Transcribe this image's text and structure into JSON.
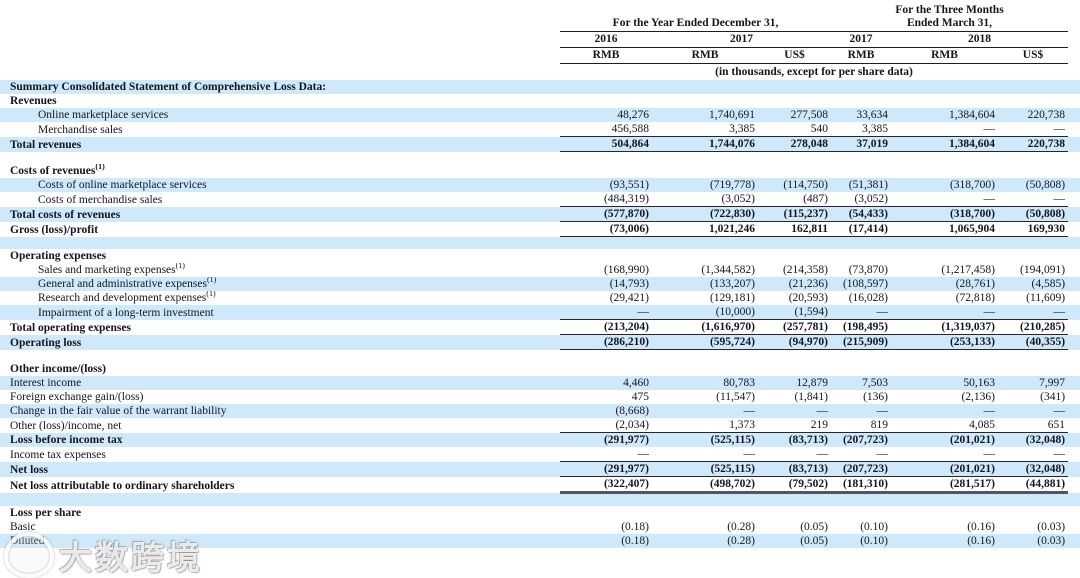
{
  "header": {
    "group1": "For the Year Ended December 31,",
    "group2_line1": "For the Three Months",
    "group2_line2": "Ended March 31,",
    "years": [
      "2016",
      "2017",
      "2017",
      "2018"
    ],
    "currencies": [
      "RMB",
      "RMB",
      "US$",
      "RMB",
      "RMB",
      "US$"
    ],
    "note": "(in thousands, except for per share data)"
  },
  "table": {
    "rows": [
      {
        "label": "Summary Consolidated Statement of Comprehensive Loss Data:",
        "bold": true,
        "stripe": true,
        "values": []
      },
      {
        "label": "Revenues",
        "bold": true,
        "stripe": false,
        "values": []
      },
      {
        "label": "Online marketplace services",
        "indent": true,
        "stripe": true,
        "values": [
          "48,276",
          "1,740,691",
          "277,508",
          "33,634",
          "1,384,604",
          "220,738"
        ]
      },
      {
        "label": "Merchandise sales",
        "indent": true,
        "stripe": false,
        "rule": "line",
        "values": [
          "456,588",
          "3,385",
          "540",
          "3,385",
          "—",
          "—"
        ]
      },
      {
        "label": "Total revenues",
        "bold": true,
        "stripe": true,
        "rule": "line",
        "values": [
          "504,864",
          "1,744,076",
          "278,048",
          "37,019",
          "1,384,604",
          "220,738"
        ]
      },
      {
        "label": "",
        "blank": true,
        "stripe": false,
        "values": []
      },
      {
        "label": "Costs of revenues",
        "sup": "(1)",
        "bold": true,
        "stripe": false,
        "values": []
      },
      {
        "label": "Costs of online marketplace services",
        "indent": true,
        "stripe": true,
        "values": [
          "(93,551)",
          "(719,778)",
          "(114,750)",
          "(51,381)",
          "(318,700)",
          "(50,808)"
        ]
      },
      {
        "label": "Costs of merchandise sales",
        "indent": true,
        "stripe": false,
        "rule": "line",
        "values": [
          "(484,319)",
          "(3,052)",
          "(487)",
          "(3,052)",
          "—",
          "—"
        ]
      },
      {
        "label": "Total costs of revenues",
        "bold": true,
        "stripe": true,
        "rule": "line",
        "values": [
          "(577,870)",
          "(722,830)",
          "(115,237)",
          "(54,433)",
          "(318,700)",
          "(50,808)"
        ]
      },
      {
        "label": "Gross (loss)/profit",
        "bold": true,
        "stripe": false,
        "rule": "line",
        "values": [
          "(73,006)",
          "1,021,246",
          "162,811",
          "(17,414)",
          "1,065,904",
          "169,930"
        ]
      },
      {
        "label": "",
        "blank": true,
        "stripe": true,
        "values": []
      },
      {
        "label": "Operating expenses",
        "bold": true,
        "stripe": false,
        "values": []
      },
      {
        "label": "Sales and marketing expenses",
        "sup": "(1)",
        "indent": true,
        "stripe": false,
        "values": [
          "(168,990)",
          "(1,344,582)",
          "(214,358)",
          "(73,870)",
          "(1,217,458)",
          "(194,091)"
        ]
      },
      {
        "label": "General and administrative expenses",
        "sup": "(1)",
        "indent": true,
        "stripe": true,
        "values": [
          "(14,793)",
          "(133,207)",
          "(21,236)",
          "(108,597)",
          "(28,761)",
          "(4,585)"
        ]
      },
      {
        "label": "Research and development expenses",
        "sup": "(1)",
        "indent": true,
        "stripe": false,
        "values": [
          "(29,421)",
          "(129,181)",
          "(20,593)",
          "(16,028)",
          "(72,818)",
          "(11,609)"
        ]
      },
      {
        "label": "Impairment of a long-term investment",
        "indent": true,
        "stripe": true,
        "rule": "line",
        "values": [
          "—",
          "(10,000)",
          "(1,594)",
          "—",
          "—",
          "—"
        ]
      },
      {
        "label": "Total operating expenses",
        "bold": true,
        "stripe": false,
        "rule": "line",
        "values": [
          "(213,204)",
          "(1,616,970)",
          "(257,781)",
          "(198,495)",
          "(1,319,037)",
          "(210,285)"
        ]
      },
      {
        "label": "Operating loss",
        "bold": true,
        "stripe": true,
        "rule": "line",
        "values": [
          "(286,210)",
          "(595,724)",
          "(94,970)",
          "(215,909)",
          "(253,133)",
          "(40,355)"
        ]
      },
      {
        "label": "",
        "blank": true,
        "stripe": false,
        "values": []
      },
      {
        "label": "Other income/(loss)",
        "bold": true,
        "stripe": false,
        "values": []
      },
      {
        "label": "Interest income",
        "stripe": true,
        "values": [
          "4,460",
          "80,783",
          "12,879",
          "7,503",
          "50,163",
          "7,997"
        ]
      },
      {
        "label": "Foreign exchange gain/(loss)",
        "stripe": false,
        "values": [
          "475",
          "(11,547)",
          "(1,841)",
          "(136)",
          "(2,136)",
          "(341)"
        ]
      },
      {
        "label": "Change in the fair value of the warrant liability",
        "stripe": true,
        "values": [
          "(8,668)",
          "—",
          "—",
          "—",
          "—",
          "—"
        ]
      },
      {
        "label": "Other (loss)/income, net",
        "stripe": false,
        "rule": "line",
        "values": [
          "(2,034)",
          "1,373",
          "219",
          "819",
          "4,085",
          "651"
        ]
      },
      {
        "label": "Loss before income tax",
        "bold": true,
        "stripe": true,
        "values": [
          "(291,977)",
          "(525,115)",
          "(83,713)",
          "(207,723)",
          "(201,021)",
          "(32,048)"
        ]
      },
      {
        "label": "Income tax expenses",
        "stripe": false,
        "rule": "line",
        "values": [
          "—",
          "—",
          "—",
          "—",
          "—",
          "—"
        ]
      },
      {
        "label": "Net loss",
        "bold": true,
        "stripe": true,
        "rule": "line",
        "values": [
          "(291,977)",
          "(525,115)",
          "(83,713)",
          "(207,723)",
          "(201,021)",
          "(32,048)"
        ]
      },
      {
        "label": "Net loss attributable to ordinary shareholders",
        "bold": true,
        "stripe": false,
        "rule": "thick",
        "values": [
          "(322,407)",
          "(498,702)",
          "(79,502)",
          "(181,310)",
          "(281,517)",
          "(44,881)"
        ]
      },
      {
        "label": "",
        "blank": true,
        "stripe": true,
        "values": []
      },
      {
        "label": "Loss per share",
        "bold": true,
        "stripe": false,
        "values": []
      },
      {
        "label": "Basic",
        "stripe": false,
        "values": [
          "(0.18)",
          "(0.28)",
          "(0.05)",
          "(0.10)",
          "(0.16)",
          "(0.03)"
        ]
      },
      {
        "label": "Diluted",
        "stripe": true,
        "values": [
          "(0.18)",
          "(0.28)",
          "(0.05)",
          "(0.10)",
          "(0.16)",
          "(0.03)"
        ]
      }
    ]
  },
  "colors": {
    "stripe": "#cfe9fa",
    "text": "#14161f",
    "rule": "#26262e"
  },
  "watermark": {
    "text": "大数跨境"
  }
}
